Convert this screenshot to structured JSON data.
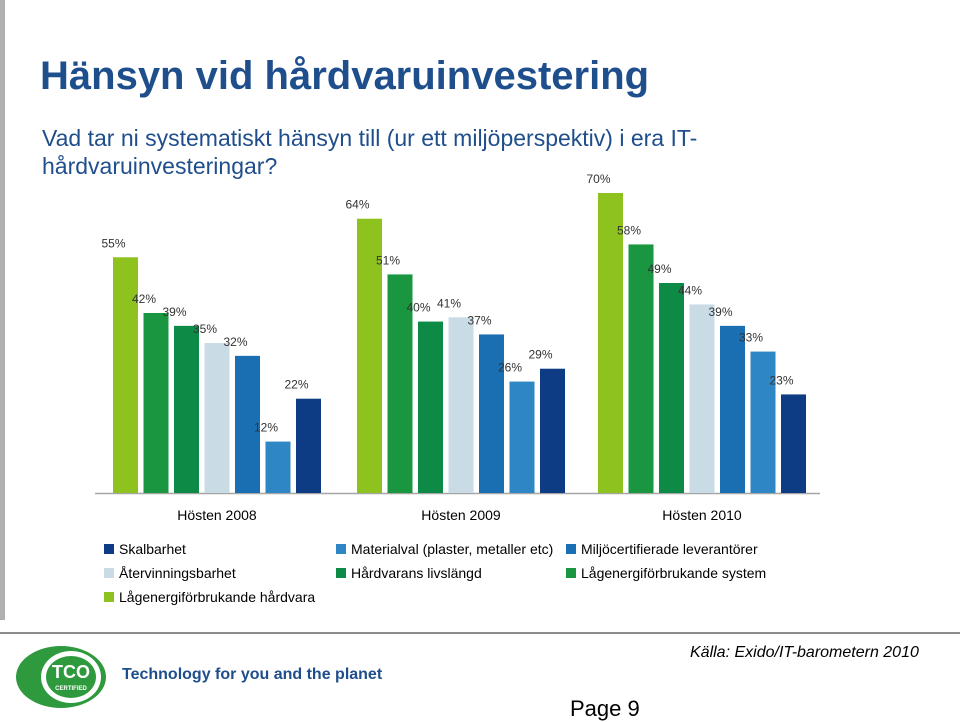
{
  "title": "Hänsyn vid hårdvaruinvestering",
  "question": "Vad tar ni systematiskt hänsyn till (ur ett miljöperspektiv) i era IT-hårdvaruinvesteringar?",
  "chart_data": {
    "type": "bar",
    "categories": [
      "Hösten 2008",
      "Hösten 2009",
      "Hösten 2010"
    ],
    "ylim": [
      0,
      70
    ],
    "series": [
      {
        "name": "Lågenergiförbrukande hårdvara",
        "color": "#8dc21f",
        "values": [
          55,
          64,
          70
        ],
        "labels": [
          "55%",
          "64%",
          "70%"
        ]
      },
      {
        "name": "Lågenergiförbrukande system",
        "color": "#1a9641",
        "values": [
          42,
          51,
          58
        ],
        "labels": [
          "42%",
          "51%",
          "58%"
        ]
      },
      {
        "name": "Hårdvarans livslängd",
        "color": "#0d8a45",
        "values": [
          39,
          40,
          49
        ],
        "labels": [
          "39%",
          "40%",
          "49%"
        ]
      },
      {
        "name": "Återvinningsbarhet",
        "color": "#c9dce6",
        "values": [
          35,
          41,
          44
        ],
        "labels": [
          "35%",
          "41%",
          "44%"
        ]
      },
      {
        "name": "Miljöcertifierade leverantörer",
        "color": "#1a6fb3",
        "values": [
          32,
          37,
          39
        ],
        "labels": [
          "32%",
          "37%",
          "39%"
        ]
      },
      {
        "name": "Materialval (plaster, metaller etc)",
        "color": "#2f86c5",
        "values": [
          12,
          26,
          33
        ],
        "labels": [
          "12%",
          "26%",
          "33%"
        ]
      },
      {
        "name": "Skalbarhet",
        "color": "#0d3b84",
        "values": [
          22,
          29,
          23
        ],
        "labels": [
          "22%",
          "29%",
          "23%"
        ]
      }
    ],
    "legend": {
      "placement": "bottom",
      "rows": [
        [
          "Skalbarhet",
          "Materialval (plaster, metaller etc)",
          "Miljöcertifierade leverantörer"
        ],
        [
          "Återvinningsbarhet",
          "Hårdvarans livslängd",
          "Lågenergiförbrukande system"
        ],
        [
          "Lågenergiförbrukande hårdvara"
        ]
      ]
    },
    "grid": false
  },
  "footer": {
    "logo_text": "TCO",
    "logo_subtext": "CERTIFIED",
    "tagline": "Technology for you and the planet",
    "source": "Källa: Exido/IT-barometern 2010",
    "page": "Page 9"
  },
  "colors": {
    "title": "#1f4e8c",
    "logo_green": "#2e9a3d"
  }
}
